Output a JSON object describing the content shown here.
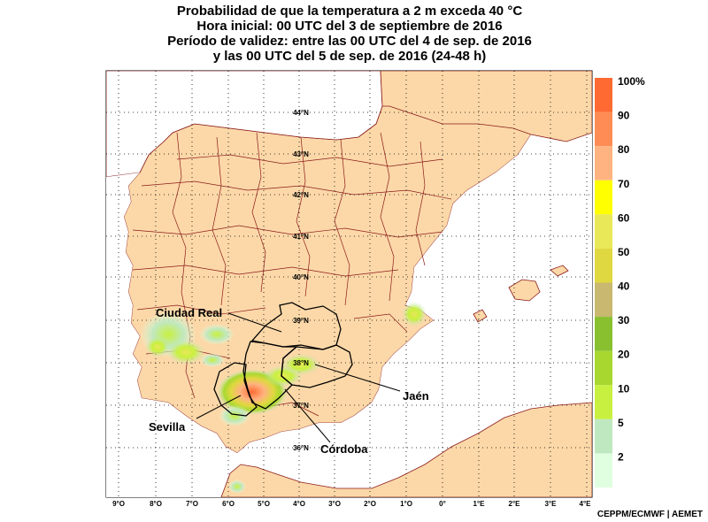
{
  "title": {
    "line1": "Probabilidad de que la temperatura a 2 m exceda 40 °C",
    "line2": "Hora inicial: 00 UTC del 3 de septiembre de 2016",
    "line3": "Período de validez: entre las 00 UTC del 4 de sep. de 2016",
    "line4": "y las 00 UTC del 5 de sep. de 2016 (24-48 h)"
  },
  "lat_labels": [
    "44°N",
    "43°N",
    "42°N",
    "41°N",
    "40°N",
    "39°N",
    "38°N",
    "37°N",
    "36°N"
  ],
  "lon_labels": [
    "9°O",
    "8°O",
    "7°O",
    "6°O",
    "5°O",
    "4°O",
    "3°O",
    "2°O",
    "1°O",
    "0°",
    "1°E",
    "2°E",
    "3°E",
    "4°E"
  ],
  "provinces": {
    "ciudad_real": "Ciudad Real",
    "jaen": "Jaén",
    "sevilla": "Sevilla",
    "cordoba": "Córdoba"
  },
  "legend": {
    "labels": [
      "100%",
      "90",
      "80",
      "70",
      "60",
      "50",
      "40",
      "30",
      "20",
      "10",
      "5",
      "2"
    ],
    "colors": [
      "#ff6a33",
      "#ff8c55",
      "#ffb380",
      "#ffff00",
      "#e8e858",
      "#e0d840",
      "#c8b870",
      "#88c030",
      "#a8d830",
      "#c8f040",
      "#c0e8c0",
      "#e0ffe0"
    ]
  },
  "colors": {
    "land": "#fcd8a8",
    "sea": "#ffffff",
    "border": "#8b1a1a"
  },
  "credit": "CEPPM/ECMWF | AEMET"
}
